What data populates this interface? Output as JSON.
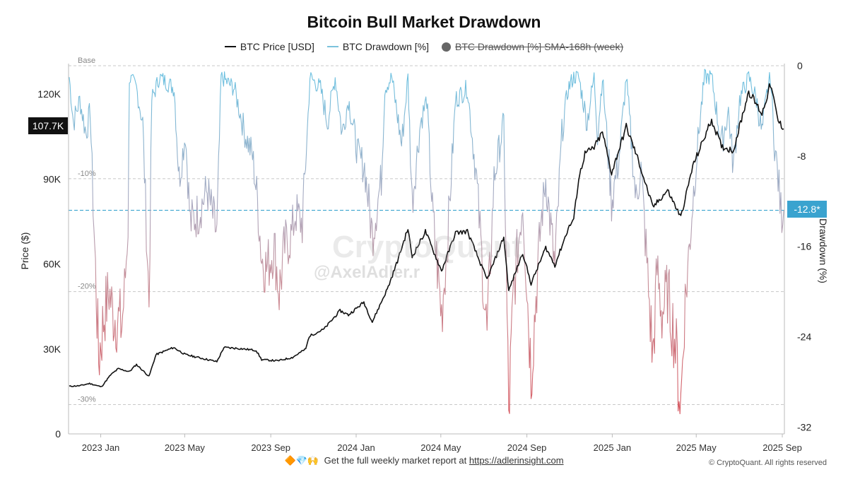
{
  "chart_data": {
    "type": "line",
    "title": "Bitcoin Bull Market Drawdown",
    "legend": [
      {
        "name": "BTC Price [USD]",
        "color": "#111111",
        "hidden": false
      },
      {
        "name": "BTC Drawdown [%]",
        "color": "#7cc3dc",
        "hidden": false
      },
      {
        "name": "BTC Drawdown [%] SMA-168h (week)",
        "color": "#666666",
        "hidden": true
      }
    ],
    "legend_placement": "top-center",
    "y_left": {
      "label": "Price ($)",
      "range": [
        0,
        130000
      ],
      "ticks": [
        0,
        30000,
        60000,
        90000,
        120000
      ],
      "tick_labels": [
        "0",
        "30K",
        "60K",
        "90K",
        "120K"
      ],
      "current_value_label": "107.7K"
    },
    "y_right": {
      "label": "Drawdown (%)",
      "range": [
        -32.6,
        0
      ],
      "ticks": [
        0,
        -8,
        -16,
        -24,
        -32
      ],
      "tick_labels": [
        "0",
        "-8",
        "-16",
        "-24",
        "-32"
      ],
      "current_value_label": "-12.8*",
      "current_value": -12.8
    },
    "x_ticks": [
      "2022-12-31",
      "2023-04-30",
      "2023-08-31",
      "2023-12-31",
      "2024-04-30",
      "2024-08-31",
      "2024-12-31",
      "2025-04-30",
      "2025-08-31"
    ],
    "x_tick_labels": [
      "2023 Jan",
      "2023 May",
      "2023 Sep",
      "2024 Jan",
      "2024 May",
      "2024 Sep",
      "2025 Jan",
      "2025 May",
      "2025 Sep"
    ],
    "x_range": [
      "2022-11-15",
      "2025-09-03"
    ],
    "reference_lines": [
      {
        "label": "Base",
        "value": 0
      },
      {
        "label": "-10%",
        "value": -10
      },
      {
        "label": "-20%",
        "value": -20
      },
      {
        "label": "-30%",
        "value": -30
      }
    ],
    "grid": false,
    "price_series": {
      "name": "BTC Price [USD]",
      "points": [
        [
          "2022-11-16",
          16800
        ],
        [
          "2022-12-01",
          17000
        ],
        [
          "2022-12-15",
          17800
        ],
        [
          "2023-01-01",
          16600
        ],
        [
          "2023-01-14",
          20800
        ],
        [
          "2023-01-25",
          23000
        ],
        [
          "2023-02-10",
          22000
        ],
        [
          "2023-02-20",
          24500
        ],
        [
          "2023-03-10",
          20300
        ],
        [
          "2023-03-20",
          28000
        ],
        [
          "2023-04-14",
          30500
        ],
        [
          "2023-05-01",
          28000
        ],
        [
          "2023-06-15",
          25500
        ],
        [
          "2023-06-25",
          30500
        ],
        [
          "2023-07-15",
          30200
        ],
        [
          "2023-08-10",
          29500
        ],
        [
          "2023-08-18",
          26200
        ],
        [
          "2023-09-10",
          25800
        ],
        [
          "2023-10-01",
          27000
        ],
        [
          "2023-10-20",
          30000
        ],
        [
          "2023-10-25",
          34500
        ],
        [
          "2023-11-15",
          37000
        ],
        [
          "2023-12-08",
          43500
        ],
        [
          "2023-12-20",
          42000
        ],
        [
          "2024-01-11",
          46500
        ],
        [
          "2024-01-23",
          39500
        ],
        [
          "2024-02-15",
          52000
        ],
        [
          "2024-02-28",
          61000
        ],
        [
          "2024-03-14",
          72500
        ],
        [
          "2024-03-20",
          62500
        ],
        [
          "2024-04-08",
          71500
        ],
        [
          "2024-05-01",
          57500
        ],
        [
          "2024-05-21",
          71000
        ],
        [
          "2024-06-07",
          71500
        ],
        [
          "2024-07-05",
          54500
        ],
        [
          "2024-07-29",
          69500
        ],
        [
          "2024-08-05",
          50500
        ],
        [
          "2024-08-25",
          64000
        ],
        [
          "2024-09-06",
          53000
        ],
        [
          "2024-09-27",
          65800
        ],
        [
          "2024-10-10",
          59500
        ],
        [
          "2024-10-29",
          72500
        ],
        [
          "2024-11-06",
          76000
        ],
        [
          "2024-11-13",
          90000
        ],
        [
          "2024-11-22",
          99000
        ],
        [
          "2024-12-05",
          101000
        ],
        [
          "2024-12-17",
          106500
        ],
        [
          "2024-12-30",
          92000
        ],
        [
          "2025-01-20",
          108500
        ],
        [
          "2025-02-05",
          97500
        ],
        [
          "2025-02-27",
          80000
        ],
        [
          "2025-03-20",
          86000
        ],
        [
          "2025-04-08",
          76500
        ],
        [
          "2025-04-25",
          94500
        ],
        [
          "2025-05-22",
          111000
        ],
        [
          "2025-06-05",
          101500
        ],
        [
          "2025-06-22",
          100000
        ],
        [
          "2025-07-14",
          121000
        ],
        [
          "2025-08-02",
          113000
        ],
        [
          "2025-08-14",
          123500
        ],
        [
          "2025-08-25",
          110500
        ],
        [
          "2025-09-02",
          107700
        ]
      ]
    },
    "drawdown_series": {
      "name": "BTC Drawdown [%]",
      "points": [
        [
          "2022-11-16",
          -1
        ],
        [
          "2022-11-22",
          -5
        ],
        [
          "2022-12-01",
          -3
        ],
        [
          "2022-12-10",
          -6
        ],
        [
          "2022-12-16",
          -4
        ],
        [
          "2022-12-20",
          -12
        ],
        [
          "2022-12-28",
          -26
        ],
        [
          "2023-01-05",
          -22
        ],
        [
          "2023-01-12",
          -20
        ],
        [
          "2023-01-18",
          -22
        ],
        [
          "2023-01-30",
          -23
        ],
        [
          "2023-02-03",
          -20
        ],
        [
          "2023-02-08",
          -14
        ],
        [
          "2023-02-10",
          -1
        ],
        [
          "2023-02-20",
          -2
        ],
        [
          "2023-03-01",
          -5
        ],
        [
          "2023-03-10",
          -21
        ],
        [
          "2023-03-14",
          -3
        ],
        [
          "2023-03-25",
          -1
        ],
        [
          "2023-04-15",
          -2
        ],
        [
          "2023-04-22",
          -10
        ],
        [
          "2023-05-01",
          -6
        ],
        [
          "2023-05-08",
          -14
        ],
        [
          "2023-05-20",
          -13
        ],
        [
          "2023-06-01",
          -11
        ],
        [
          "2023-06-15",
          -15
        ],
        [
          "2023-06-21",
          -1
        ],
        [
          "2023-07-10",
          -2
        ],
        [
          "2023-07-25",
          -6
        ],
        [
          "2023-08-05",
          -8
        ],
        [
          "2023-08-12",
          -12
        ],
        [
          "2023-08-18",
          -17
        ],
        [
          "2023-08-25",
          -18
        ],
        [
          "2023-09-05",
          -16
        ],
        [
          "2023-09-12",
          -20
        ],
        [
          "2023-09-20",
          -16
        ],
        [
          "2023-09-30",
          -15
        ],
        [
          "2023-10-05",
          -13
        ],
        [
          "2023-10-15",
          -14
        ],
        [
          "2023-10-22",
          -6
        ],
        [
          "2023-10-26",
          -1
        ],
        [
          "2023-11-10",
          -2
        ],
        [
          "2023-11-20",
          -5
        ],
        [
          "2023-12-01",
          -1
        ],
        [
          "2023-12-11",
          -6
        ],
        [
          "2023-12-20",
          -3
        ],
        [
          "2024-01-03",
          -8
        ],
        [
          "2024-01-12",
          -9
        ],
        [
          "2024-01-23",
          -15
        ],
        [
          "2024-02-05",
          -10
        ],
        [
          "2024-02-10",
          -2
        ],
        [
          "2024-02-20",
          -1
        ],
        [
          "2024-03-05",
          -7
        ],
        [
          "2024-03-14",
          -1
        ],
        [
          "2024-03-20",
          -12
        ],
        [
          "2024-04-01",
          -5
        ],
        [
          "2024-04-10",
          -3
        ],
        [
          "2024-04-18",
          -13
        ],
        [
          "2024-05-01",
          -22
        ],
        [
          "2024-05-10",
          -15
        ],
        [
          "2024-05-21",
          -3
        ],
        [
          "2024-06-07",
          -2
        ],
        [
          "2024-06-20",
          -10
        ],
        [
          "2024-07-05",
          -24
        ],
        [
          "2024-07-15",
          -10
        ],
        [
          "2024-07-29",
          -5
        ],
        [
          "2024-08-05",
          -31
        ],
        [
          "2024-08-12",
          -20
        ],
        [
          "2024-08-25",
          -12
        ],
        [
          "2024-09-06",
          -27
        ],
        [
          "2024-09-20",
          -14
        ],
        [
          "2024-09-27",
          -10
        ],
        [
          "2024-10-10",
          -18
        ],
        [
          "2024-10-20",
          -6
        ],
        [
          "2024-10-29",
          -2
        ],
        [
          "2024-11-06",
          -1
        ],
        [
          "2024-11-13",
          -1
        ],
        [
          "2024-11-25",
          -5
        ],
        [
          "2024-12-05",
          -1
        ],
        [
          "2024-12-10",
          -6
        ],
        [
          "2024-12-17",
          -1
        ],
        [
          "2024-12-30",
          -12
        ],
        [
          "2025-01-10",
          -8
        ],
        [
          "2025-01-20",
          -1
        ],
        [
          "2025-02-03",
          -12
        ],
        [
          "2025-02-10",
          -9
        ],
        [
          "2025-02-27",
          -26
        ],
        [
          "2025-03-05",
          -18
        ],
        [
          "2025-03-12",
          -22
        ],
        [
          "2025-03-20",
          -20
        ],
        [
          "2025-03-30",
          -24
        ],
        [
          "2025-04-08",
          -30
        ],
        [
          "2025-04-13",
          -22
        ],
        [
          "2025-04-25",
          -12
        ],
        [
          "2025-05-05",
          -5
        ],
        [
          "2025-05-12",
          -1
        ],
        [
          "2025-05-22",
          -1
        ],
        [
          "2025-06-05",
          -7
        ],
        [
          "2025-06-15",
          -4
        ],
        [
          "2025-06-22",
          -9
        ],
        [
          "2025-07-01",
          -3
        ],
        [
          "2025-07-14",
          -1
        ],
        [
          "2025-07-25",
          -3
        ],
        [
          "2025-08-02",
          -6
        ],
        [
          "2025-08-10",
          -2
        ],
        [
          "2025-08-14",
          -1
        ],
        [
          "2025-08-20",
          -7
        ],
        [
          "2025-08-25",
          -10
        ],
        [
          "2025-08-29",
          -13
        ],
        [
          "2025-09-02",
          -12.8
        ]
      ]
    }
  },
  "badges": {
    "price_current": "107.7K",
    "drawdown_current": "-12.8*"
  },
  "watermark": {
    "brand": "CryptoQuant",
    "author": "@AxelAdler.r"
  },
  "footer": {
    "emojis": "🔶💎🙌",
    "text": "Get the full weekly market report at",
    "link": "https://adlerinsight.com",
    "copyright": "© CryptoQuant. All rights reserved"
  }
}
